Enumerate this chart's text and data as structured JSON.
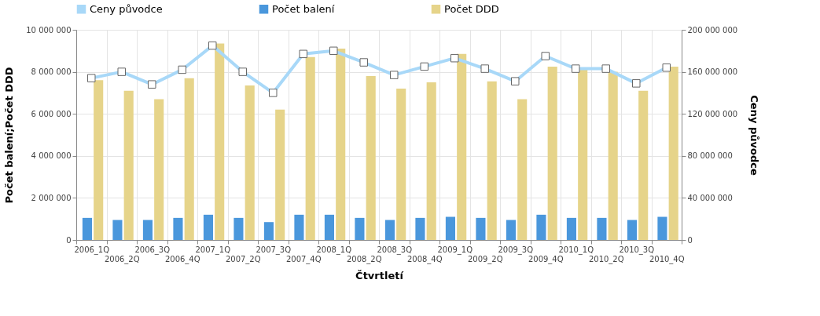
{
  "chart_data": {
    "type": "bar",
    "xlabel": "Čtvrtletí",
    "ylabel": "Počet balení;Počet DDD",
    "y2label": "Ceny původce",
    "categories": [
      "2006_1Q",
      "2006_2Q",
      "2006_3Q",
      "2006_4Q",
      "2007_1Q",
      "2007_2Q",
      "2007_3Q",
      "2007_4Q",
      "2008_1Q",
      "2008_2Q",
      "2008_3Q",
      "2008_4Q",
      "2009_1Q",
      "2009_2Q",
      "2009_3Q",
      "2009_4Q",
      "2010_1Q",
      "2010_2Q",
      "2010_3Q",
      "2010_4Q"
    ],
    "series": [
      {
        "name": "Ceny původce",
        "type": "line",
        "axis": "y2",
        "color": "#a8d8f8",
        "values": [
          154000000,
          160000000,
          148000000,
          162000000,
          185000000,
          160000000,
          140000000,
          177000000,
          180000000,
          169000000,
          157000000,
          165000000,
          173000000,
          163000000,
          151000000,
          175000000,
          163000000,
          163000000,
          149000000,
          164000000
        ]
      },
      {
        "name": "Počet balení",
        "color": "#4a97dc",
        "values": [
          1050000,
          950000,
          950000,
          1050000,
          1200000,
          1050000,
          850000,
          1200000,
          1200000,
          1050000,
          950000,
          1050000,
          1100000,
          1050000,
          950000,
          1200000,
          1050000,
          1050000,
          950000,
          1100000
        ]
      },
      {
        "name": "Počet DDD",
        "color": "#e6d48a",
        "values": [
          7600000,
          7100000,
          6700000,
          7700000,
          9350000,
          7350000,
          6200000,
          8700000,
          9100000,
          7800000,
          7200000,
          7500000,
          8850000,
          7550000,
          6700000,
          8250000,
          8100000,
          8000000,
          7100000,
          8250000
        ]
      }
    ],
    "ylim": [
      0,
      10000000
    ],
    "yticks": [
      0,
      2000000,
      4000000,
      6000000,
      8000000,
      10000000
    ],
    "y2lim": [
      0,
      200000000
    ],
    "y2ticks": [
      0,
      40000000,
      80000000,
      120000000,
      160000000,
      200000000
    ],
    "grid": true,
    "legend": "top",
    "marker": "square"
  }
}
